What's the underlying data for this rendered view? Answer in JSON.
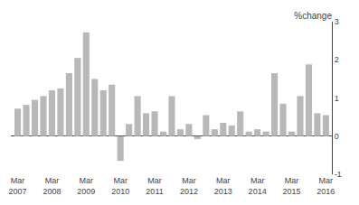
{
  "chart_data": {
    "type": "bar",
    "title": "%change",
    "categories": [
      "Mar\n2007",
      null,
      null,
      null,
      "Mar\n2008",
      null,
      null,
      null,
      "Mar\n2009",
      null,
      null,
      null,
      "Mar\n2010",
      null,
      null,
      null,
      "Mar\n2011",
      null,
      null,
      null,
      "Mar\n2012",
      null,
      null,
      null,
      "Mar\n2013",
      null,
      null,
      null,
      "Mar\n2014",
      null,
      null,
      null,
      "Mar\n2015",
      null,
      null,
      null,
      "Mar\n2016"
    ],
    "values": [
      0.72,
      0.82,
      0.95,
      1.05,
      1.2,
      1.25,
      1.65,
      2.05,
      2.72,
      1.5,
      1.2,
      1.35,
      -0.65,
      0.32,
      1.05,
      0.6,
      0.65,
      0.12,
      1.05,
      0.18,
      0.32,
      -0.08,
      0.55,
      0.18,
      0.35,
      0.28,
      0.65,
      0.12,
      0.18,
      0.12,
      1.65,
      0.85,
      0.12,
      1.05,
      1.88,
      0.6,
      0.55
    ],
    "color": "#b8b8b8",
    "ylim": [
      -1,
      3
    ],
    "yticks": [
      -1,
      0,
      1,
      2,
      3
    ],
    "grid": false
  }
}
